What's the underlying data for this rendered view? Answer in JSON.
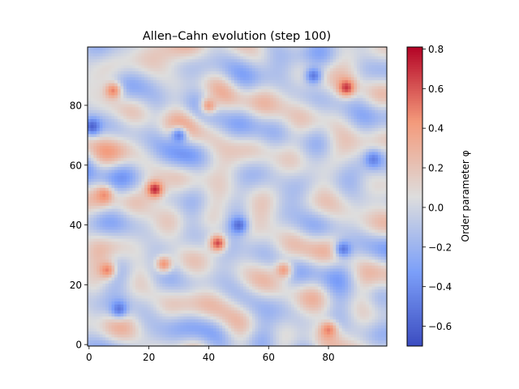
{
  "chart_data": {
    "type": "heatmap",
    "title": "Allen–Cahn evolution (step 100)",
    "xlabel": "",
    "ylabel": "",
    "grid_size": [
      100,
      100
    ],
    "xlim": [
      0,
      99
    ],
    "ylim": [
      0,
      99
    ],
    "x_ticks": [
      0,
      20,
      40,
      60,
      80
    ],
    "y_ticks": [
      0,
      20,
      40,
      60,
      80
    ],
    "colormap": "coolwarm",
    "colorbar": {
      "label": "Order parameter φ",
      "range": [
        -0.7,
        0.81
      ],
      "ticks": [
        -0.6,
        -0.4,
        -0.2,
        0.0,
        0.2,
        0.4,
        0.6,
        0.8
      ],
      "tick_labels": [
        "−0.6",
        "−0.4",
        "−0.2",
        "0.0",
        "0.2",
        "0.4",
        "0.6",
        "0.8"
      ]
    },
    "hotspots": [
      {
        "x": 86,
        "y": 86,
        "value": 0.75
      },
      {
        "x": 22,
        "y": 52,
        "value": 0.8
      },
      {
        "x": 43,
        "y": 34,
        "value": 0.72
      },
      {
        "x": 6,
        "y": 25,
        "value": 0.55
      },
      {
        "x": 25,
        "y": 27,
        "value": 0.5
      },
      {
        "x": 8,
        "y": 85,
        "value": 0.55
      },
      {
        "x": 5,
        "y": 50,
        "value": 0.5
      },
      {
        "x": 80,
        "y": 5,
        "value": 0.55
      },
      {
        "x": 40,
        "y": 80,
        "value": 0.45
      },
      {
        "x": 65,
        "y": 25,
        "value": 0.45
      },
      {
        "x": 1,
        "y": 73,
        "value": -0.65
      },
      {
        "x": 50,
        "y": 40,
        "value": -0.6
      },
      {
        "x": 75,
        "y": 90,
        "value": -0.55
      },
      {
        "x": 10,
        "y": 12,
        "value": -0.55
      },
      {
        "x": 30,
        "y": 70,
        "value": -0.5
      },
      {
        "x": 85,
        "y": 32,
        "value": -0.55
      },
      {
        "x": 95,
        "y": 62,
        "value": -0.5
      }
    ]
  }
}
